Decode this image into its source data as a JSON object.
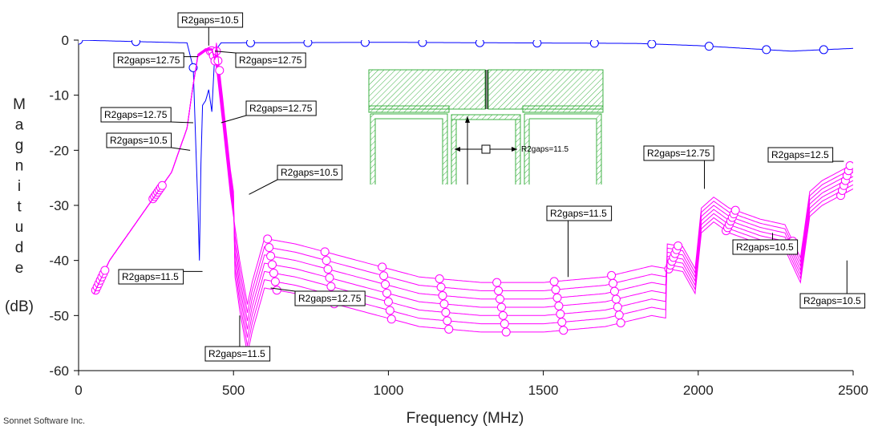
{
  "chart_data": {
    "type": "line",
    "title": "",
    "xlabel": "Frequency (MHz)",
    "ylabel_chars": [
      "M",
      "a",
      "g",
      "n",
      "i",
      "t",
      "u",
      "d",
      "e"
    ],
    "ylabel_unit": "(dB)",
    "xlim": [
      0,
      2500
    ],
    "ylim": [
      -60,
      0
    ],
    "x_ticks": [
      0,
      500,
      1000,
      1500,
      2000,
      2500
    ],
    "y_ticks": [
      0,
      -10,
      -20,
      -30,
      -40,
      -50,
      -60
    ],
    "grid": false,
    "colors": {
      "s21": "#ff00ff",
      "s11": "#0000ff",
      "annotation": "#000000",
      "inset": "#00aa00"
    },
    "series": [
      {
        "color": "#0000ff",
        "offset": 0.0
      },
      {
        "color": "#ff00ff",
        "offset": 0.0
      },
      {
        "color": "#ff00ff",
        "offset": 1.5
      },
      {
        "color": "#ff00ff",
        "offset": 3.0
      },
      {
        "color": "#ff00ff",
        "offset": 4.5
      },
      {
        "color": "#ff00ff",
        "offset": 6.0
      },
      {
        "color": "#ff00ff",
        "offset": 7.5
      },
      {
        "color": "#ff00ff",
        "offset": 9.0
      }
    ],
    "annotations": [
      {
        "text": "R2gaps=10.5",
        "anchor": [
          420,
          -1
        ]
      },
      {
        "text": "R2gaps=12.75",
        "anchor": [
          385,
          -3
        ]
      },
      {
        "text": "R2gaps=12.75",
        "anchor": [
          440,
          -2
        ]
      },
      {
        "text": "R2gaps=12.75",
        "anchor": [
          370,
          -15
        ]
      },
      {
        "text": "R2gaps=12.75",
        "anchor": [
          460,
          -15
        ]
      },
      {
        "text": "R2gaps=10.5",
        "anchor": [
          360,
          -20
        ]
      },
      {
        "text": "R2gaps=10.5",
        "anchor": [
          550,
          -28
        ]
      },
      {
        "text": "R2gaps=11.5",
        "anchor": [
          400,
          -42
        ]
      },
      {
        "text": "R2gaps=12.75",
        "anchor": [
          620,
          -45
        ]
      },
      {
        "text": "R2gaps=11.5",
        "anchor": [
          520,
          -50
        ]
      },
      {
        "text": "R2gaps=11.5",
        "anchor": [
          1580,
          -43
        ]
      },
      {
        "text": "R2gaps=12.75",
        "anchor": [
          2020,
          -27
        ]
      },
      {
        "text": "R2gaps=10.5",
        "anchor": [
          2240,
          -35
        ]
      },
      {
        "text": "R2gaps=12.5",
        "anchor": [
          2470,
          -22
        ]
      },
      {
        "text": "R2gaps=10.5",
        "anchor": [
          2480,
          -40
        ]
      }
    ],
    "inset_label": "R2gaps=11.5",
    "credit": "Sonnet Software Inc."
  }
}
